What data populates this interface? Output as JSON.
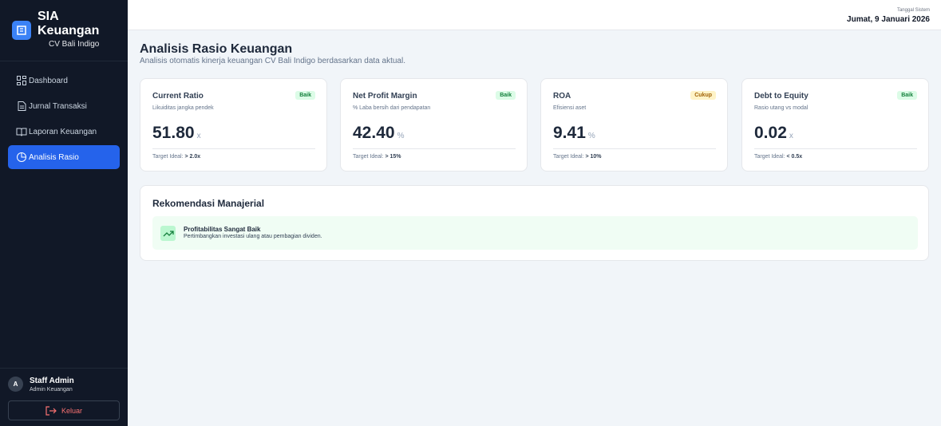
{
  "sidebar": {
    "brand": {
      "title": "SIA Keuangan",
      "subtitle": "CV Bali Indigo"
    },
    "nav": [
      "Dashboard",
      "Jurnal Transaksi",
      "Laporan Keuangan",
      "Analisis Rasio"
    ],
    "user": {
      "initial": "A",
      "name": "Staff Admin",
      "role": "Admin Keuangan"
    },
    "logout": "Keluar"
  },
  "topbar": {
    "date_label": "Tanggal Sistem",
    "date": "Jumat, 9 Januari 2026"
  },
  "page": {
    "title": "Analisis Rasio Keuangan",
    "subtitle": "Analisis otomatis kinerja keuangan CV Bali Indigo berdasarkan data aktual."
  },
  "metrics": [
    {
      "title": "Current Ratio",
      "status": "Baik",
      "description": "Likuiditas jangka pendek",
      "value": "51.80",
      "unit": "x",
      "target_label": "Target Ideal:",
      "target": "> 2.0x"
    },
    {
      "title": "Net Profit Margin",
      "status": "Baik",
      "description": "% Laba bersih dari pendapatan",
      "value": "42.40",
      "unit": "%",
      "target_label": "Target Ideal:",
      "target": "> 15%"
    },
    {
      "title": "ROA",
      "status": "Cukup",
      "description": "Efisiensi aset",
      "value": "9.41",
      "unit": "%",
      "target_label": "Target Ideal:",
      "target": "> 10%"
    },
    {
      "title": "Debt to Equity",
      "status": "Baik",
      "description": "Rasio utang vs modal",
      "value": "0.02",
      "unit": "x",
      "target_label": "Target Ideal:",
      "target": "< 0.5x"
    }
  ],
  "recommendations": {
    "title": "Rekomendasi Manajerial",
    "items": [
      {
        "title": "Profitabilitas Sangat Baik",
        "text": "Pertimbangkan investasi ulang atau pembagian dividen."
      }
    ]
  }
}
